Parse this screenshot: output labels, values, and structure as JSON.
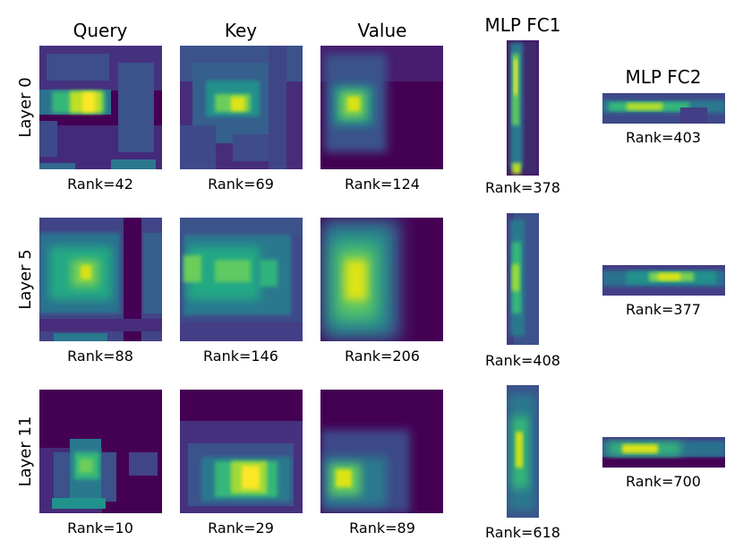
{
  "chart_data": {
    "type": "heatmap",
    "colormap": "viridis",
    "column_titles": [
      "Query",
      "Key",
      "Value",
      "MLP FC1",
      "MLP FC2"
    ],
    "row_labels": [
      "Layer 0",
      "Layer 5",
      "Layer 11"
    ],
    "panels": [
      {
        "layer": "Layer 0",
        "matrix": "Query",
        "rank": "Rank=42"
      },
      {
        "layer": "Layer 0",
        "matrix": "Key",
        "rank": "Rank=69"
      },
      {
        "layer": "Layer 0",
        "matrix": "Value",
        "rank": "Rank=124"
      },
      {
        "layer": "Layer 0",
        "matrix": "MLP FC1",
        "rank": "Rank=378"
      },
      {
        "layer": "Layer 0",
        "matrix": "MLP FC2",
        "rank": "Rank=403"
      },
      {
        "layer": "Layer 5",
        "matrix": "Query",
        "rank": "Rank=88"
      },
      {
        "layer": "Layer 5",
        "matrix": "Key",
        "rank": "Rank=146"
      },
      {
        "layer": "Layer 5",
        "matrix": "Value",
        "rank": "Rank=206"
      },
      {
        "layer": "Layer 5",
        "matrix": "MLP FC1",
        "rank": "Rank=408"
      },
      {
        "layer": "Layer 5",
        "matrix": "MLP FC2",
        "rank": "Rank=377"
      },
      {
        "layer": "Layer 11",
        "matrix": "Query",
        "rank": "Rank=10"
      },
      {
        "layer": "Layer 11",
        "matrix": "Key",
        "rank": "Rank=29"
      },
      {
        "layer": "Layer 11",
        "matrix": "Value",
        "rank": "Rank=89"
      },
      {
        "layer": "Layer 11",
        "matrix": "MLP FC1",
        "rank": "Rank=618"
      },
      {
        "layer": "Layer 11",
        "matrix": "MLP FC2",
        "rank": "Rank=700"
      }
    ]
  }
}
